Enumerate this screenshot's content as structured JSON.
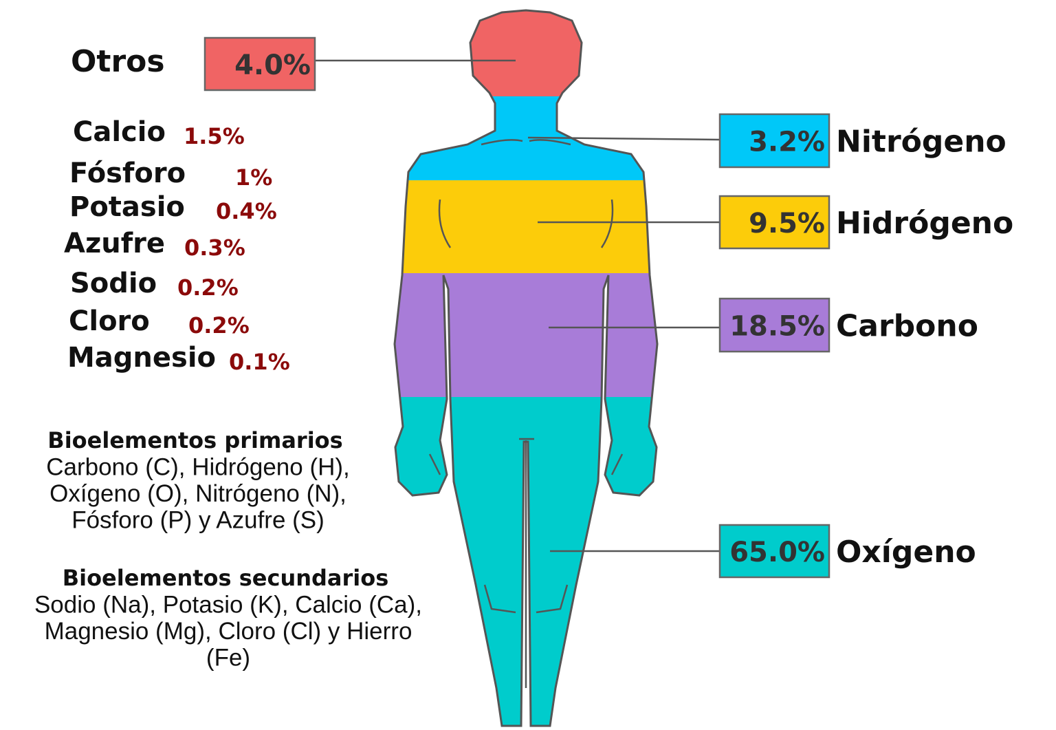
{
  "major": [
    {
      "label": "Otros",
      "value": "4.0%",
      "color": "#f06464"
    },
    {
      "label": "Nitrógeno",
      "value": "3.2%",
      "color": "#00c8f8"
    },
    {
      "label": "Hidrógeno",
      "value": "9.5%",
      "color": "#fccc0a"
    },
    {
      "label": "Carbono",
      "value": "18.5%",
      "color": "#a87cd8"
    },
    {
      "label": "Oxígeno",
      "value": "65.0%",
      "color": "#00cccc"
    }
  ],
  "minor": [
    {
      "label": "Calcio",
      "value": "1.5%"
    },
    {
      "label": "Fósforo",
      "value": "1%"
    },
    {
      "label": "Potasio",
      "value": "0.4%"
    },
    {
      "label": "Azufre",
      "value": "0.3%"
    },
    {
      "label": "Sodio",
      "value": "0.2%"
    },
    {
      "label": "Cloro",
      "value": "0.2%"
    },
    {
      "label": "Magnesio",
      "value": "0.1%"
    }
  ],
  "primary": {
    "title": "Bioelementos primarios",
    "lines": [
      "Carbono (C), Hidrógeno (H),",
      "Oxígeno (O), Nitrógeno (N),",
      "Fósforo (P) y Azufre (S)"
    ]
  },
  "secondary": {
    "title": "Bioelementos secundarios",
    "lines": [
      "Sodio (Na), Potasio (K), Calcio (Ca),",
      "Magnesio (Mg), Cloro (Cl) y Hierro",
      "(Fe)"
    ]
  }
}
